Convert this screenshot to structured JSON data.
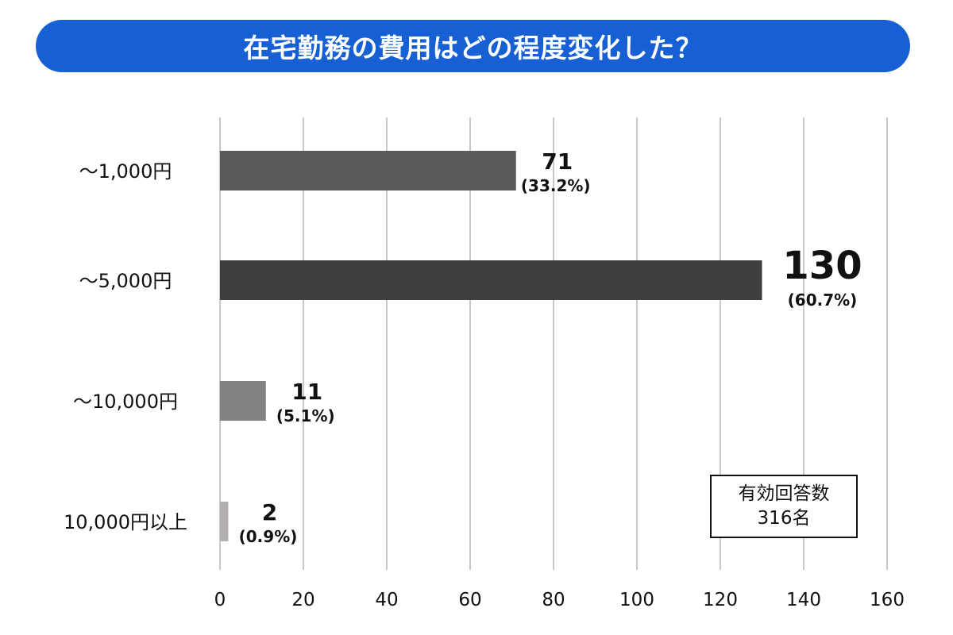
{
  "chart_data": {
    "type": "bar",
    "orientation": "horizontal",
    "title": "在宅勤務の費用はどの程度変化した？",
    "categories": [
      "～1,000円",
      "～5,000円",
      "～10,000円",
      "10,000円以上"
    ],
    "values": [
      71,
      130,
      11,
      2
    ],
    "value_labels": [
      "71",
      "130",
      "11",
      "2"
    ],
    "percent_labels": [
      "(33.2%)",
      "(60.7%)",
      "(5.1%)",
      "(0.9%)"
    ],
    "bar_colors": [
      "#5a5a5a",
      "#3e3e3e",
      "#828282",
      "#b4b0b0"
    ],
    "xlim": [
      0,
      160
    ],
    "xticks": [
      0,
      20,
      40,
      60,
      80,
      100,
      120,
      140,
      160
    ],
    "grid": true,
    "gridline_color": "#c8c8c8"
  },
  "note": {
    "line1": "有効回答数",
    "line2": "316名"
  },
  "colors": {
    "title_bg": "#1660d4",
    "title_text": "#ffffff"
  }
}
